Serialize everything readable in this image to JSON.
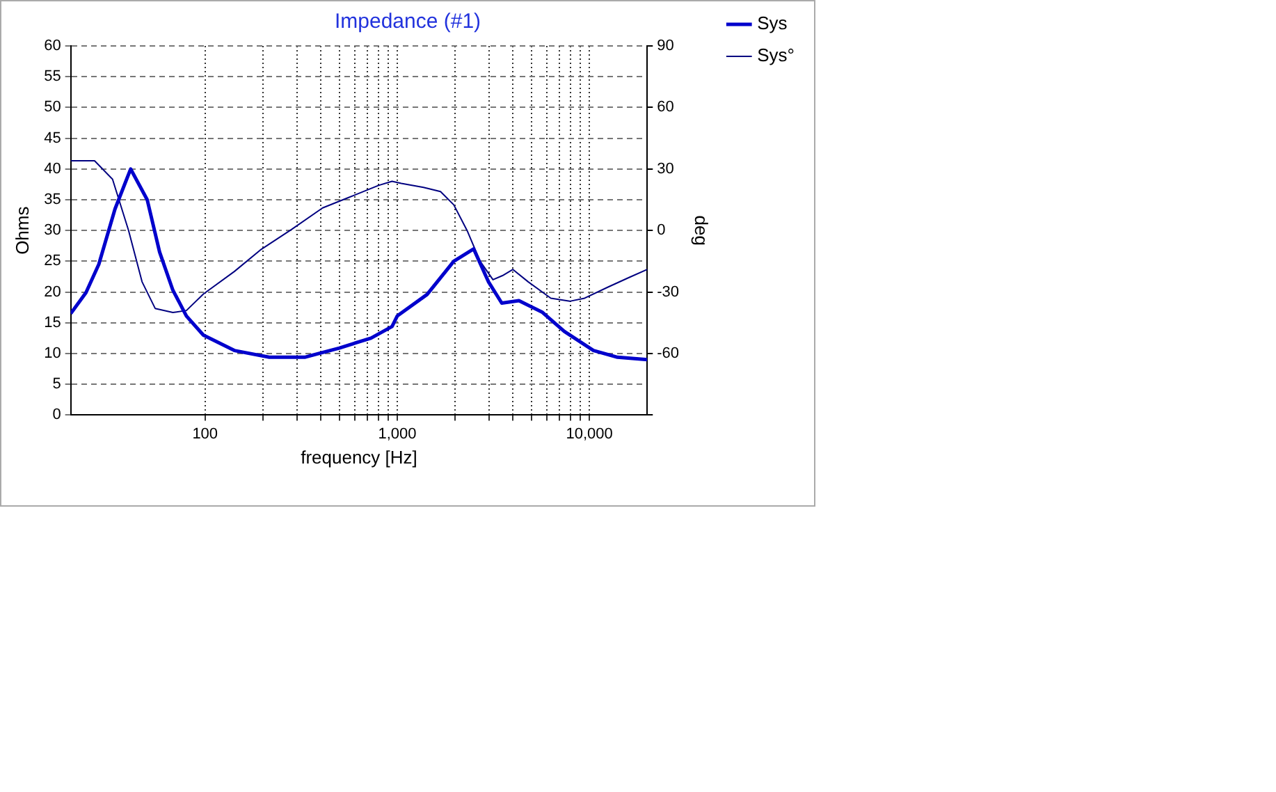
{
  "chart_data": {
    "type": "line",
    "title": "Impedance (#1)",
    "xlabel": "frequency [Hz]",
    "ylabel": "Ohms",
    "y2label": "deg",
    "log": "x",
    "grid": true,
    "legend": "top right",
    "marker": "none",
    "xlim": [
      20,
      20000
    ],
    "xticks": [
      100,
      {
        "value": 200,
        "label": null
      },
      {
        "value": 300,
        "label": null
      },
      {
        "value": 400,
        "label": null
      },
      {
        "value": 500,
        "label": null
      },
      {
        "value": 600,
        "label": null
      },
      {
        "value": 700,
        "label": null
      },
      {
        "value": 800,
        "label": null
      },
      {
        "value": 900,
        "label": null
      },
      {
        "value": 1000,
        "label": "1,000"
      },
      {
        "value": 2000,
        "label": null
      },
      {
        "value": 3000,
        "label": null
      },
      {
        "value": 4000,
        "label": null
      },
      {
        "value": 5000,
        "label": null
      },
      {
        "value": 6000,
        "label": null
      },
      {
        "value": 7000,
        "label": null
      },
      {
        "value": 8000,
        "label": null
      },
      {
        "value": 9000,
        "label": null
      },
      {
        "value": 10000,
        "label": "10,000"
      }
    ],
    "ylim": [
      0,
      60
    ],
    "yticks": [
      0,
      5,
      10,
      15,
      20,
      25,
      30,
      35,
      40,
      45,
      50,
      55,
      60
    ],
    "y2lim": [
      -90,
      90
    ],
    "y2ticks": [
      {
        "value": -90,
        "label": null
      },
      -60,
      -30,
      0,
      30,
      60,
      90
    ],
    "series": [
      {
        "name": "Sys",
        "color": "#0000cc",
        "x": [
          20,
          24,
          28,
          34,
          41,
          50,
          58,
          68,
          80,
          98,
          142,
          216,
          330,
          500,
          730,
          940,
          1000,
          1430,
          1970,
          2500,
          2980,
          3500,
          4300,
          5700,
          7400,
          10500,
          14000,
          20000
        ],
        "values": [
          16.5,
          19.9,
          24.5,
          33.5,
          40,
          35,
          26.5,
          20.3,
          16.1,
          13,
          10.5,
          9.4,
          9.4,
          10.9,
          12.5,
          14.4,
          16.1,
          19.6,
          25,
          27,
          21.7,
          18.2,
          18.6,
          16.7,
          13.6,
          10.5,
          9.4,
          9
        ]
      },
      {
        "name": "Sys°",
        "color": "#000080",
        "axis": "y2",
        "x": [
          20,
          26.6,
          33,
          40,
          47,
          55,
          68,
          80,
          98,
          142,
          194,
          283,
          409,
          556,
          800,
          940,
          1050,
          1370,
          1680,
          1970,
          2310,
          2700,
          3150,
          3530,
          4000,
          4800,
          6300,
          7900,
          9450,
          12500,
          16000,
          20000
        ],
        "values": [
          34,
          34,
          25,
          0,
          -25,
          -38,
          -40,
          -39,
          -31,
          -20,
          -9.5,
          0.6,
          11,
          16,
          22,
          24,
          23,
          21,
          19,
          12.5,
          0,
          -15,
          -24,
          -22,
          -19,
          -25,
          -33,
          -34.5,
          -33,
          -27.6,
          -23,
          -19
        ]
      }
    ]
  }
}
